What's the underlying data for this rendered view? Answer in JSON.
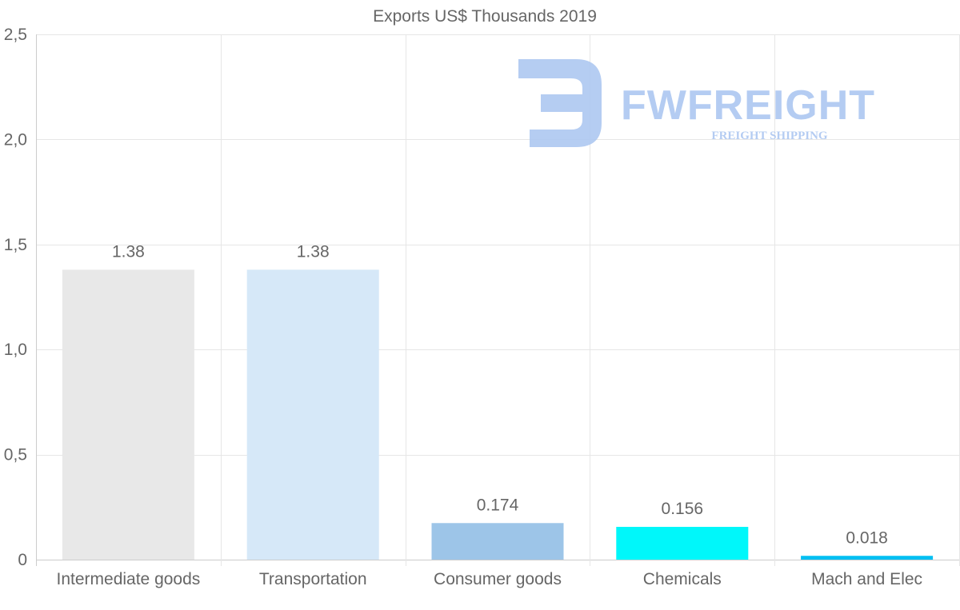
{
  "chart_data": {
    "type": "bar",
    "title": "Exports US$ Thousands 2019",
    "xlabel": "",
    "ylabel": "",
    "categories": [
      "Intermediate goods",
      "Transportation",
      "Consumer goods",
      "Chemicals",
      "Mach and Elec"
    ],
    "values": [
      1.38,
      1.38,
      0.174,
      0.156,
      0.018
    ],
    "data_labels": [
      "1.38",
      "1.38",
      "0.174",
      "0.156",
      "0.018"
    ],
    "bar_colors": [
      "#e8e8e8",
      "#d6e8f8",
      "#9dc5e8",
      "#00f7fa",
      "#00bff2"
    ],
    "ylim": [
      0,
      2.5
    ],
    "yticks": [
      0,
      0.5,
      1.0,
      1.5,
      2.0,
      2.5
    ],
    "ytick_labels": [
      "0",
      "0,5",
      "1,0",
      "1,5",
      "2,0",
      "2,5"
    ],
    "grid": true
  },
  "watermark": {
    "brand": "FWFREIGHT",
    "tagline": "FREIGHT SHIPPING",
    "color": "#a8c4f0"
  }
}
